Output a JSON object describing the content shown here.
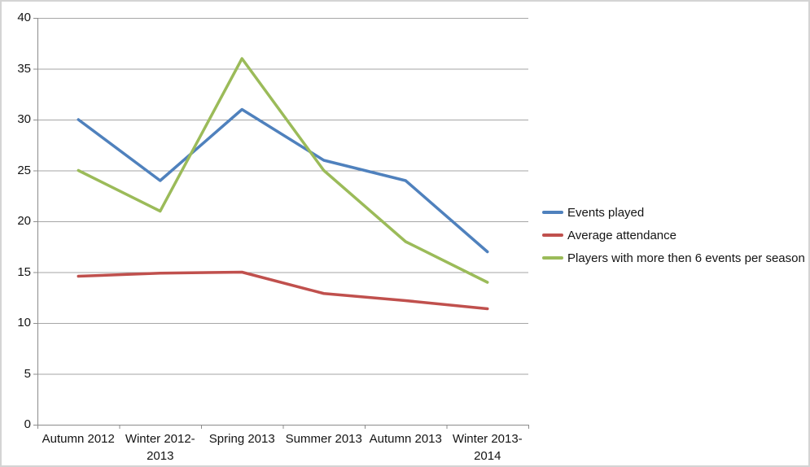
{
  "chart_data": {
    "type": "line",
    "title": "",
    "xlabel": "",
    "ylabel": "",
    "categories": [
      "Autumn 2012",
      "Winter 2012-2013",
      "Spring 2013",
      "Summer 2013",
      "Autumn 2013",
      "Winter 2013-2014"
    ],
    "series": [
      {
        "name": "Events played",
        "color": "#4F81BD",
        "values": [
          30,
          24,
          31,
          26,
          24,
          17
        ]
      },
      {
        "name": "Average attendance",
        "color": "#C0504D",
        "values": [
          14.6,
          14.9,
          15,
          12.9,
          12.2,
          11.4
        ]
      },
      {
        "name": "Players with more then 6 events per season",
        "color": "#9BBB59",
        "values": [
          25,
          21,
          36,
          25,
          18,
          14
        ]
      }
    ],
    "ylim": [
      0,
      40
    ],
    "yticks": [
      0,
      5,
      10,
      15,
      20,
      25,
      30,
      35,
      40
    ],
    "grid": true,
    "legend_position": "right"
  },
  "palette": {
    "gridline": "#A6A6A6",
    "axis": "#8C8C8C",
    "text": "#141414",
    "chart_border": "#D4D4D4",
    "background": "#FFFFFF"
  }
}
